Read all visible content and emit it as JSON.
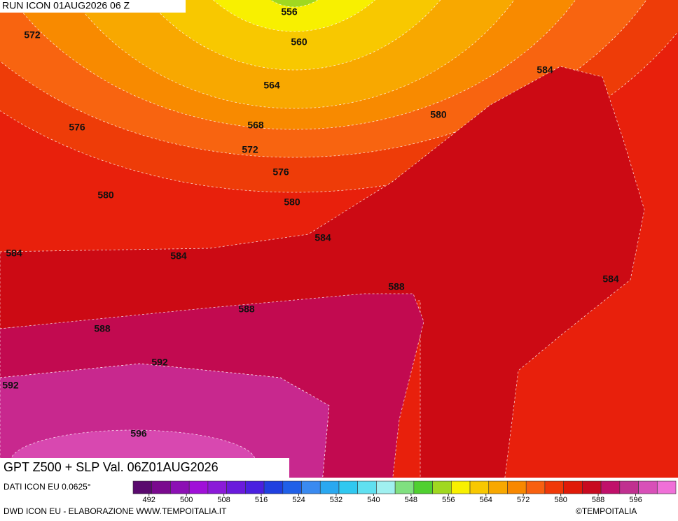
{
  "header": {
    "run": "RUN ICON 01AUG2026 06 Z"
  },
  "map": {
    "contour_labels": [
      556,
      560,
      572,
      564,
      584,
      576,
      568,
      580,
      572,
      576,
      580,
      580,
      584,
      584,
      584,
      584,
      588,
      588,
      588,
      592,
      592,
      596
    ]
  },
  "footer": {
    "title": "GPT Z500 + SLP Val. 06Z01AUG2026",
    "source": "DATI ICON EU 0.0625°",
    "credit": "DWD ICON EU - ELABORAZIONE WWW.TEMPOITALIA.IT",
    "copyright": "©TEMPOITALIA",
    "scale": {
      "ticks": [
        492,
        500,
        508,
        516,
        524,
        532,
        540,
        548,
        556,
        564,
        572,
        580,
        588,
        596
      ],
      "colors": [
        "#5a0a6e",
        "#7a0a8e",
        "#8c10b4",
        "#a010d8",
        "#8b1ad8",
        "#6a1adc",
        "#4a20e0",
        "#2040e0",
        "#2060e8",
        "#3a8af0",
        "#2aa8f0",
        "#30c8f0",
        "#60e0f0",
        "#a0f0f0",
        "#80e080",
        "#50d030",
        "#a0d820",
        "#f8f000",
        "#f8c800",
        "#f8a800",
        "#f88800",
        "#f86010",
        "#f03808",
        "#e01a08",
        "#c80a20",
        "#c0106a",
        "#c03090",
        "#d850b8",
        "#f070d8"
      ]
    }
  }
}
